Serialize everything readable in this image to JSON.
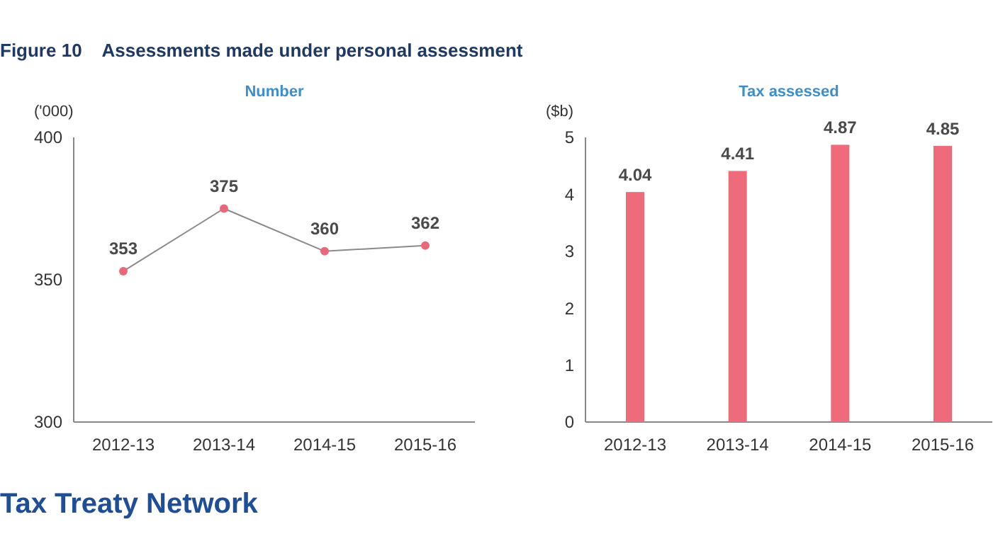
{
  "chart_data": [
    {
      "type": "line",
      "title": "Figure 10    Assessments made under personal assessment",
      "subtitle": "Number",
      "ylabel": "('000)",
      "categories": [
        "2012-13",
        "2013-14",
        "2014-15",
        "2015-16"
      ],
      "series": [
        {
          "color": "#e8697a",
          "values": [
            353,
            375,
            360,
            362
          ]
        }
      ],
      "ylim": [
        300,
        400
      ],
      "yticks": [
        300,
        350,
        400
      ],
      "data_labels": true,
      "marker": "circle",
      "grid": false
    },
    {
      "type": "bar",
      "subtitle": "Tax assessed",
      "ylabel": "($b)",
      "categories": [
        "2012-13",
        "2013-14",
        "2014-15",
        "2015-16"
      ],
      "values": [
        4.04,
        4.41,
        4.87,
        4.85
      ],
      "color": "#ee6b7b",
      "ylim": [
        0,
        5
      ],
      "yticks": [
        0,
        1,
        2,
        3,
        4,
        5
      ],
      "data_labels": true,
      "grid": false,
      "annotations": [
        "Tax Treaty Network"
      ]
    }
  ]
}
